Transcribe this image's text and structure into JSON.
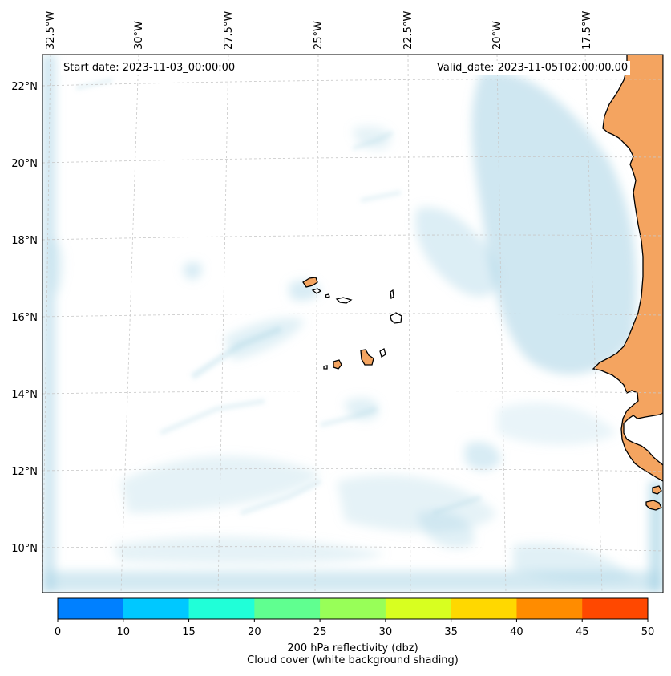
{
  "annotations": {
    "start": "Start date: 2023-11-03_00:00:00",
    "valid": "Valid_date: 2023-11-05T02:00:00.00"
  },
  "lon_labels": [
    "32.5°W",
    "30°W",
    "27.5°W",
    "25°W",
    "22.5°W",
    "20°W",
    "17.5°W"
  ],
  "lat_labels": [
    "22°N",
    "20°N",
    "18°N",
    "16°N",
    "14°N",
    "12°N",
    "10°N"
  ],
  "colorbar": {
    "ticks": [
      "0",
      "10",
      "15",
      "20",
      "25",
      "30",
      "35",
      "40",
      "45",
      "50"
    ],
    "colors": [
      "#0080ff",
      "#00c8ff",
      "#20ffd8",
      "#60ff90",
      "#98ff58",
      "#d8ff20",
      "#ffd800",
      "#ff8c00",
      "#ff4800"
    ],
    "label_line1": "200 hPa reflectivity (dbz)",
    "label_line2": "Cloud cover (white background shading)"
  },
  "style": {
    "cloud_color": "#a8d4e6",
    "land_color": "#f4a460",
    "coast_color": "#000000",
    "grid": true
  }
}
